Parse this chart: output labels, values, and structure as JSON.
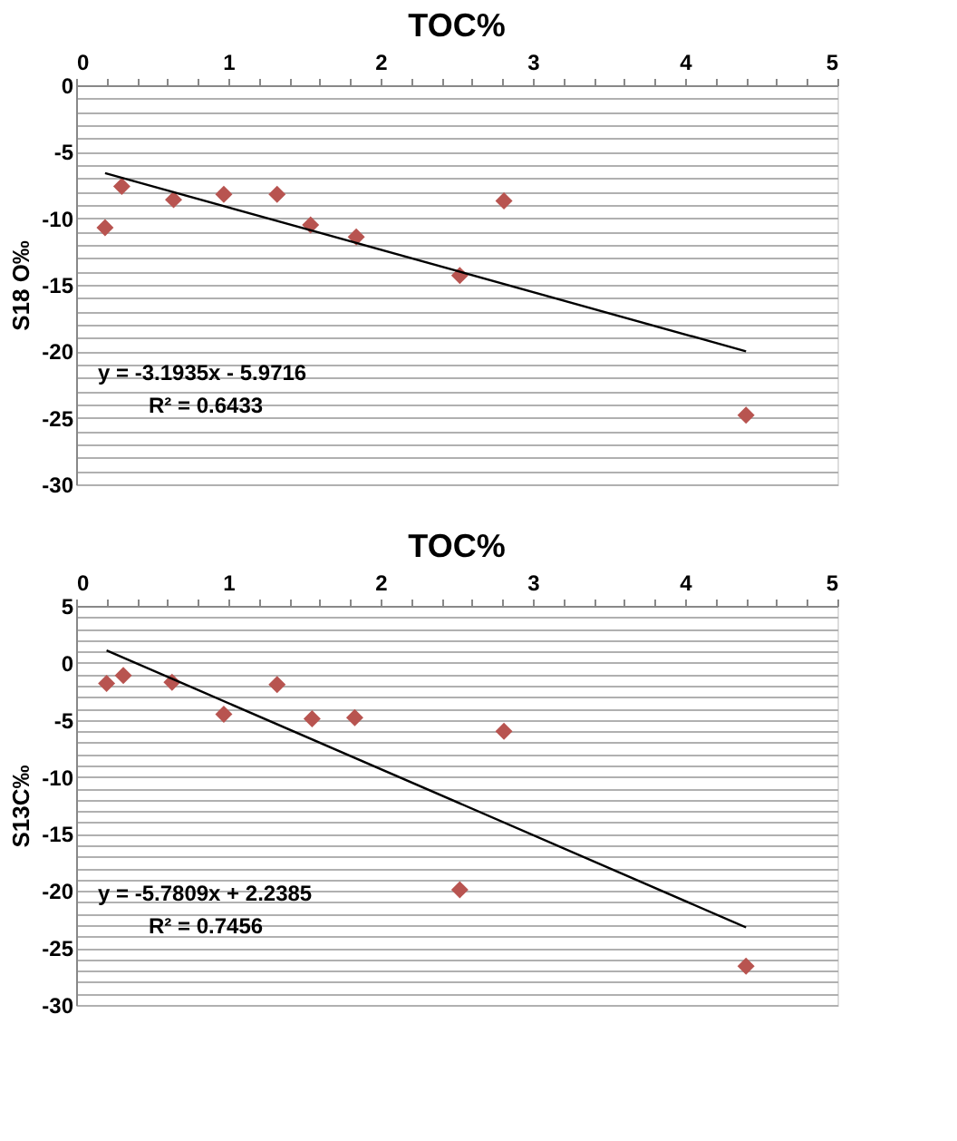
{
  "chart_data": [
    {
      "type": "scatter",
      "title": "TOC%",
      "ylabel": "S18 O‰",
      "marker": "diamond",
      "grid": "y",
      "xlim": [
        0,
        5
      ],
      "xticks": [
        0,
        {
          "value": 0.2,
          "label": null
        },
        {
          "value": 0.4,
          "label": null
        },
        {
          "value": 0.6,
          "label": null
        },
        {
          "value": 0.8,
          "label": null
        },
        1,
        {
          "value": 1.2,
          "label": null
        },
        {
          "value": 1.4,
          "label": null
        },
        {
          "value": 1.6,
          "label": null
        },
        {
          "value": 1.8,
          "label": null
        },
        2,
        {
          "value": 2.2,
          "label": null
        },
        {
          "value": 2.4,
          "label": null
        },
        {
          "value": 2.6,
          "label": null
        },
        {
          "value": 2.8,
          "label": null
        },
        3,
        {
          "value": 3.2,
          "label": null
        },
        {
          "value": 3.4,
          "label": null
        },
        {
          "value": 3.6,
          "label": null
        },
        {
          "value": 3.8,
          "label": null
        },
        4,
        {
          "value": 4.2,
          "label": null
        },
        {
          "value": 4.4,
          "label": null
        },
        {
          "value": 4.6,
          "label": null
        },
        {
          "value": 4.8,
          "label": null
        },
        5
      ],
      "ylim": [
        -30,
        0
      ],
      "yticks": [
        -30,
        {
          "value": -29,
          "label": null
        },
        {
          "value": -28,
          "label": null
        },
        {
          "value": -27,
          "label": null
        },
        {
          "value": -26,
          "label": null
        },
        -25,
        {
          "value": -24,
          "label": null
        },
        {
          "value": -23,
          "label": null
        },
        {
          "value": -22,
          "label": null
        },
        {
          "value": -21,
          "label": null
        },
        -20,
        {
          "value": -19,
          "label": null
        },
        {
          "value": -18,
          "label": null
        },
        {
          "value": -17,
          "label": null
        },
        {
          "value": -16,
          "label": null
        },
        -15,
        {
          "value": -14,
          "label": null
        },
        {
          "value": -13,
          "label": null
        },
        {
          "value": -12,
          "label": null
        },
        {
          "value": -11,
          "label": null
        },
        -10,
        {
          "value": -9,
          "label": null
        },
        {
          "value": -8,
          "label": null
        },
        {
          "value": -7,
          "label": null
        },
        {
          "value": -6,
          "label": null
        },
        -5,
        {
          "value": -4,
          "label": null
        },
        {
          "value": -3,
          "label": null
        },
        {
          "value": -2,
          "label": null
        },
        {
          "value": -1,
          "label": null
        },
        0
      ],
      "series": [
        {
          "color": "#b85450",
          "x": [
            0.19,
            0.3,
            0.64,
            0.97,
            1.32,
            1.54,
            1.84,
            2.52,
            2.81,
            4.4
          ],
          "values": [
            -10.7,
            -7.6,
            -8.6,
            -8.2,
            -8.2,
            -10.5,
            -11.4,
            -14.3,
            -8.7,
            -24.8
          ]
        },
        {
          "type": "line",
          "color": "#000000",
          "marker": "none",
          "line_style": "solid",
          "x": [
            0.19,
            4.4
          ],
          "values": [
            -6.6,
            -20.0
          ]
        }
      ],
      "annotations": [
        "y = -3.1935x - 5.9716",
        "R² = 0.6433"
      ]
    },
    {
      "type": "scatter",
      "title": "TOC%",
      "ylabel": "S13C‰",
      "marker": "diamond",
      "grid": "y",
      "xlim": [
        0,
        5
      ],
      "xticks": [
        0,
        {
          "value": 0.2,
          "label": null
        },
        {
          "value": 0.4,
          "label": null
        },
        {
          "value": 0.6,
          "label": null
        },
        {
          "value": 0.8,
          "label": null
        },
        1,
        {
          "value": 1.2,
          "label": null
        },
        {
          "value": 1.4,
          "label": null
        },
        {
          "value": 1.6,
          "label": null
        },
        {
          "value": 1.8,
          "label": null
        },
        2,
        {
          "value": 2.2,
          "label": null
        },
        {
          "value": 2.4,
          "label": null
        },
        {
          "value": 2.6,
          "label": null
        },
        {
          "value": 2.8,
          "label": null
        },
        3,
        {
          "value": 3.2,
          "label": null
        },
        {
          "value": 3.4,
          "label": null
        },
        {
          "value": 3.6,
          "label": null
        },
        {
          "value": 3.8,
          "label": null
        },
        4,
        {
          "value": 4.2,
          "label": null
        },
        {
          "value": 4.4,
          "label": null
        },
        {
          "value": 4.6,
          "label": null
        },
        {
          "value": 4.8,
          "label": null
        },
        5
      ],
      "ylim": [
        -30,
        5
      ],
      "yticks": [
        -30,
        {
          "value": -29,
          "label": null
        },
        {
          "value": -28,
          "label": null
        },
        {
          "value": -27,
          "label": null
        },
        {
          "value": -26,
          "label": null
        },
        -25,
        {
          "value": -24,
          "label": null
        },
        {
          "value": -23,
          "label": null
        },
        {
          "value": -22,
          "label": null
        },
        {
          "value": -21,
          "label": null
        },
        -20,
        {
          "value": -19,
          "label": null
        },
        {
          "value": -18,
          "label": null
        },
        {
          "value": -17,
          "label": null
        },
        {
          "value": -16,
          "label": null
        },
        -15,
        {
          "value": -14,
          "label": null
        },
        {
          "value": -13,
          "label": null
        },
        {
          "value": -12,
          "label": null
        },
        {
          "value": -11,
          "label": null
        },
        -10,
        {
          "value": -9,
          "label": null
        },
        {
          "value": -8,
          "label": null
        },
        {
          "value": -7,
          "label": null
        },
        {
          "value": -6,
          "label": null
        },
        -5,
        {
          "value": -4,
          "label": null
        },
        {
          "value": -3,
          "label": null
        },
        {
          "value": -2,
          "label": null
        },
        {
          "value": -1,
          "label": null
        },
        0,
        {
          "value": 1,
          "label": null
        },
        {
          "value": 2,
          "label": null
        },
        {
          "value": 3,
          "label": null
        },
        {
          "value": 4,
          "label": null
        },
        5
      ],
      "series": [
        {
          "color": "#b85450",
          "x": [
            0.2,
            0.31,
            0.63,
            0.97,
            1.32,
            1.55,
            1.83,
            2.52,
            2.81,
            4.4
          ],
          "values": [
            -1.8,
            -1.1,
            -1.7,
            -4.5,
            -1.9,
            -4.9,
            -4.8,
            -19.9,
            -6.0,
            -26.6
          ]
        },
        {
          "type": "line",
          "color": "#000000",
          "marker": "none",
          "line_style": "solid",
          "x": [
            0.2,
            4.4
          ],
          "values": [
            1.1,
            -23.2
          ]
        }
      ],
      "annotations": [
        "y = -5.7809x + 2.2385",
        "R² = 0.7456"
      ]
    }
  ]
}
